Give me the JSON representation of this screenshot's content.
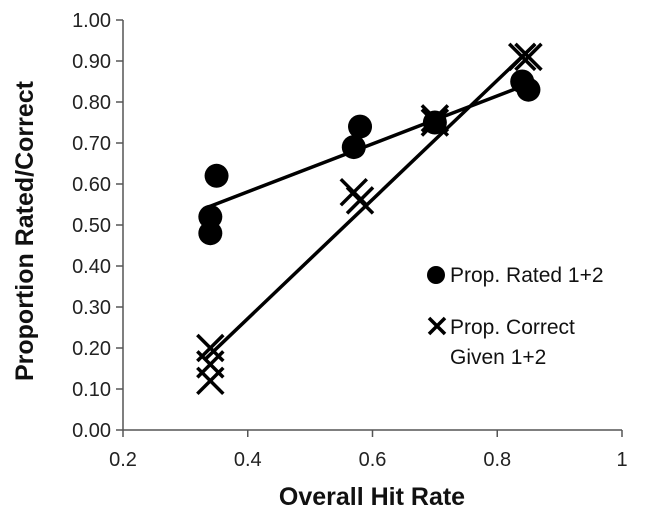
{
  "chart_data": {
    "type": "scatter",
    "title": "",
    "xlabel": "Overall Hit Rate",
    "ylabel": "Proportion Rated/Correct",
    "xlim": [
      0.2,
      1
    ],
    "ylim": [
      0,
      1
    ],
    "x_ticks": [
      "0.2",
      "0.4",
      "0.6",
      "0.8",
      "1"
    ],
    "y_ticks": [
      "0.00",
      "0.10",
      "0.20",
      "0.30",
      "0.40",
      "0.50",
      "0.60",
      "0.70",
      "0.80",
      "0.90",
      "1.00"
    ],
    "grid": false,
    "legend_position": "right",
    "series": [
      {
        "name": "Prop. Rated 1+2",
        "marker": "circle",
        "color": "#000000",
        "points": [
          {
            "x": 0.34,
            "y": 0.52
          },
          {
            "x": 0.34,
            "y": 0.48
          },
          {
            "x": 0.35,
            "y": 0.62
          },
          {
            "x": 0.57,
            "y": 0.69
          },
          {
            "x": 0.58,
            "y": 0.74
          },
          {
            "x": 0.7,
            "y": 0.75
          },
          {
            "x": 0.84,
            "y": 0.85
          },
          {
            "x": 0.85,
            "y": 0.83
          }
        ],
        "trendline": {
          "x": [
            0.33,
            0.86
          ],
          "y": [
            0.54,
            0.85
          ]
        }
      },
      {
        "name_lines": [
          "Prop. Correct",
          "Given 1+2"
        ],
        "marker": "x",
        "color": "#000000",
        "points": [
          {
            "x": 0.34,
            "y": 0.2
          },
          {
            "x": 0.34,
            "y": 0.16
          },
          {
            "x": 0.34,
            "y": 0.12
          },
          {
            "x": 0.57,
            "y": 0.58
          },
          {
            "x": 0.58,
            "y": 0.56
          },
          {
            "x": 0.7,
            "y": 0.76
          },
          {
            "x": 0.7,
            "y": 0.75
          },
          {
            "x": 0.84,
            "y": 0.91
          },
          {
            "x": 0.85,
            "y": 0.91
          }
        ],
        "trendline": {
          "x": [
            0.33,
            0.86
          ],
          "y": [
            0.17,
            0.94
          ]
        }
      }
    ]
  }
}
